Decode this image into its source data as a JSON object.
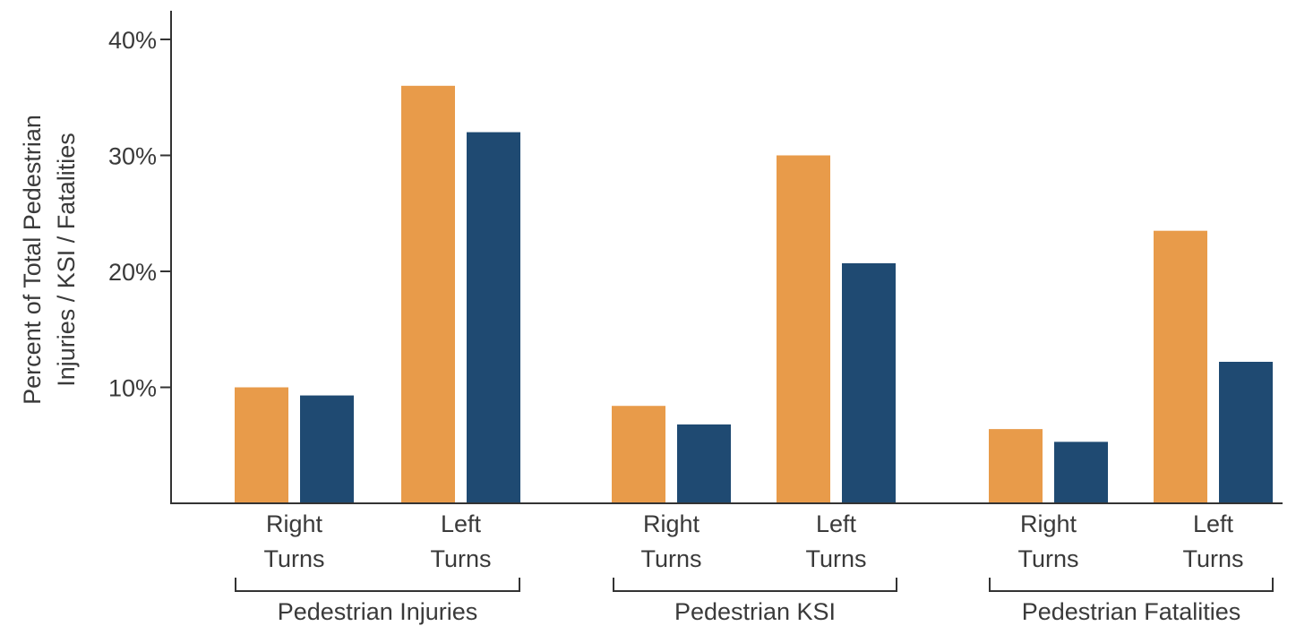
{
  "chart_data": {
    "type": "bar",
    "title": "",
    "ylabel": "Percent of Total Pedestrian Injuries / KSI / Fatalities",
    "ylabel_lines": [
      "Percent of Total Pedestrian",
      "Injuries / KSI / Fatalities"
    ],
    "ylim": [
      0,
      40
    ],
    "yticks": [
      10,
      20,
      30,
      40
    ],
    "ytick_labels": [
      "10%",
      "20%",
      "30%",
      "40%"
    ],
    "grid": false,
    "legend": "none",
    "groups": [
      {
        "name": "Pedestrian Injuries",
        "categories": [
          {
            "label": [
              "Right",
              "Turns"
            ],
            "values": [
              10.0,
              9.3
            ]
          },
          {
            "label": [
              "Left",
              "Turns"
            ],
            "values": [
              36.0,
              32.0
            ]
          }
        ]
      },
      {
        "name": "Pedestrian KSI",
        "categories": [
          {
            "label": [
              "Right",
              "Turns"
            ],
            "values": [
              8.4,
              6.8
            ]
          },
          {
            "label": [
              "Left",
              "Turns"
            ],
            "values": [
              30.0,
              20.7
            ]
          }
        ]
      },
      {
        "name": "Pedestrian Fatalities",
        "categories": [
          {
            "label": [
              "Right",
              "Turns"
            ],
            "values": [
              6.4,
              5.3
            ]
          },
          {
            "label": [
              "Left",
              "Turns"
            ],
            "values": [
              23.5,
              12.2
            ]
          }
        ]
      }
    ],
    "series_colors": [
      "#e89b4a",
      "#1f4a72"
    ]
  }
}
